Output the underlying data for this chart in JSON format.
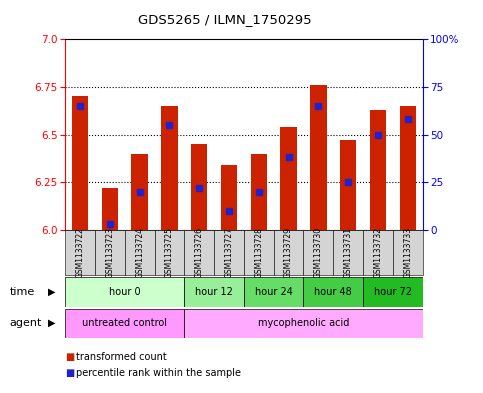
{
  "title": "GDS5265 / ILMN_1750295",
  "samples": [
    "GSM1133722",
    "GSM1133723",
    "GSM1133724",
    "GSM1133725",
    "GSM1133726",
    "GSM1133727",
    "GSM1133728",
    "GSM1133729",
    "GSM1133730",
    "GSM1133731",
    "GSM1133732",
    "GSM1133733"
  ],
  "bar_values": [
    6.7,
    6.22,
    6.4,
    6.65,
    6.45,
    6.34,
    6.4,
    6.54,
    6.76,
    6.47,
    6.63,
    6.65
  ],
  "percentile_values": [
    65,
    3,
    20,
    55,
    22,
    10,
    20,
    38,
    65,
    25,
    50,
    58
  ],
  "y_min": 6.0,
  "y_max": 7.0,
  "y_ticks_left": [
    6.0,
    6.25,
    6.5,
    6.75,
    7.0
  ],
  "y_ticks_right": [
    0,
    25,
    50,
    75,
    100
  ],
  "bar_color": "#cc2200",
  "percentile_color": "#2222cc",
  "bg_color": "#ffffff",
  "grid_dotted_values": [
    6.25,
    6.5,
    6.75
  ],
  "time_groups": [
    {
      "label": "hour 0",
      "start": 0,
      "end": 4,
      "color": "#ccffcc"
    },
    {
      "label": "hour 12",
      "start": 4,
      "end": 6,
      "color": "#99ee99"
    },
    {
      "label": "hour 24",
      "start": 6,
      "end": 8,
      "color": "#66dd66"
    },
    {
      "label": "hour 48",
      "start": 8,
      "end": 10,
      "color": "#44cc44"
    },
    {
      "label": "hour 72",
      "start": 10,
      "end": 12,
      "color": "#22bb22"
    }
  ],
  "agent_groups": [
    {
      "label": "untreated control",
      "start": 0,
      "end": 4,
      "color": "#ff99ff"
    },
    {
      "label": "mycophenolic acid",
      "start": 4,
      "end": 12,
      "color": "#ffaaff"
    }
  ],
  "legend_red": "transformed count",
  "legend_blue": "percentile rank within the sample",
  "time_label": "time",
  "agent_label": "agent"
}
